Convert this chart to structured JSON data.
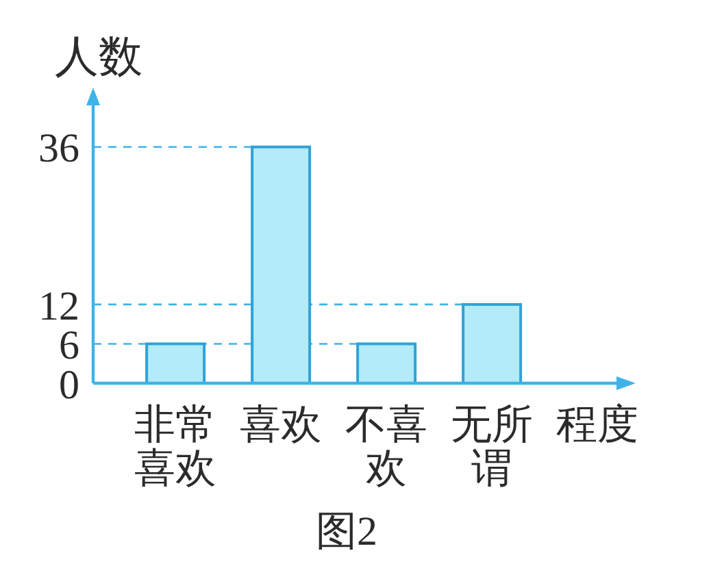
{
  "chart_data": {
    "type": "bar",
    "title": "图2",
    "xlabel": "程度",
    "ylabel": "人数",
    "categories": [
      "非常喜欢",
      "喜欢",
      "不喜欢",
      "无所谓"
    ],
    "values": [
      6,
      36,
      6,
      12
    ],
    "color": "#b3ebf8",
    "ylim": [
      0,
      44
    ],
    "yticks": [
      0,
      6,
      12,
      36
    ],
    "ref_lines": [
      {
        "axis": "y",
        "value": 36,
        "color": "#3db3e8",
        "line_style": "dashed"
      },
      {
        "axis": "y",
        "value": 12,
        "color": "#3db3e8",
        "line_style": "dashed"
      },
      {
        "axis": "y",
        "value": 6,
        "color": "#3db3e8",
        "line_style": "dashed"
      }
    ]
  }
}
